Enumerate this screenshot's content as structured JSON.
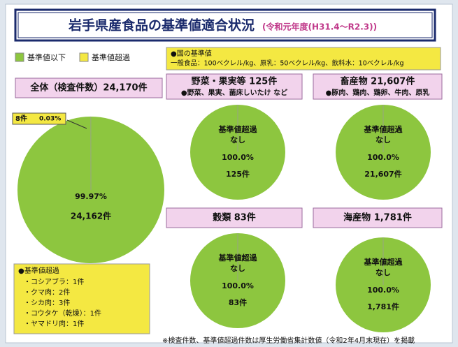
{
  "title": "岩手県産食品の基準値適合状況",
  "subtitle": "(令和元年度(H31.4～R2.3))",
  "standard": {
    "heading": "●国の基準値",
    "text": "一般食品：100ベクレル/kg、原乳：50ベクレル/kg、飲料水：10ベクレル/kg"
  },
  "note": {
    "heading": "●基準値超過",
    "items": [
      "・コシアブラ：1件",
      "・クマ肉：2件",
      "・シカ肉：3件",
      "・コウタケ（乾燥）：1件",
      "・ヤマドリ肉：1件"
    ]
  },
  "footer": "※検査件数、基準値超過件数は厚生労働省集計数値（令和2年4月末現在）を掲載",
  "chart_data": [
    {
      "type": "pie",
      "title": "全体（検査件数）24,170件",
      "categories": [
        "基準値以下",
        "基準値超過"
      ],
      "values": [
        24162,
        8
      ],
      "colors": [
        "#8dc63f",
        "#f4e842"
      ],
      "value_labels": [
        "24,162件",
        "8件"
      ],
      "percent_labels": [
        "99.97%",
        "0.03%"
      ]
    },
    {
      "type": "pie",
      "title": "野菜・果実等 125件",
      "subtitle": "●野菜、果実、菌床しいたけ など",
      "categories": [
        "基準値以下",
        "基準値超過"
      ],
      "values": [
        125,
        0
      ],
      "colors": [
        "#8dc63f",
        "#f4e842"
      ],
      "annotation": "基準値超過",
      "annotation_value": "なし",
      "percent_label": "100.0%",
      "value_label": "125件"
    },
    {
      "type": "pie",
      "title": "畜産物 21,607件",
      "subtitle": "●豚肉、鶏肉、鶏卵、牛肉、原乳",
      "categories": [
        "基準値以下",
        "基準値超過"
      ],
      "values": [
        21607,
        0
      ],
      "colors": [
        "#8dc63f",
        "#f4e842"
      ],
      "annotation": "基準値超過",
      "annotation_value": "なし",
      "percent_label": "100.0%",
      "value_label": "21,607件"
    },
    {
      "type": "pie",
      "title": "穀類 83件",
      "categories": [
        "基準値以下",
        "基準値超過"
      ],
      "values": [
        83,
        0
      ],
      "colors": [
        "#8dc63f",
        "#f4e842"
      ],
      "annotation": "基準値超過",
      "annotation_value": "なし",
      "percent_label": "100.0%",
      "value_label": "83件"
    },
    {
      "type": "pie",
      "title": "海産物 1,781件",
      "categories": [
        "基準値以下",
        "基準値超過"
      ],
      "values": [
        1781,
        0
      ],
      "colors": [
        "#8dc63f",
        "#f4e842"
      ],
      "annotation": "基準値超過",
      "annotation_value": "なし",
      "percent_label": "100.0%",
      "value_label": "1,781件"
    }
  ]
}
